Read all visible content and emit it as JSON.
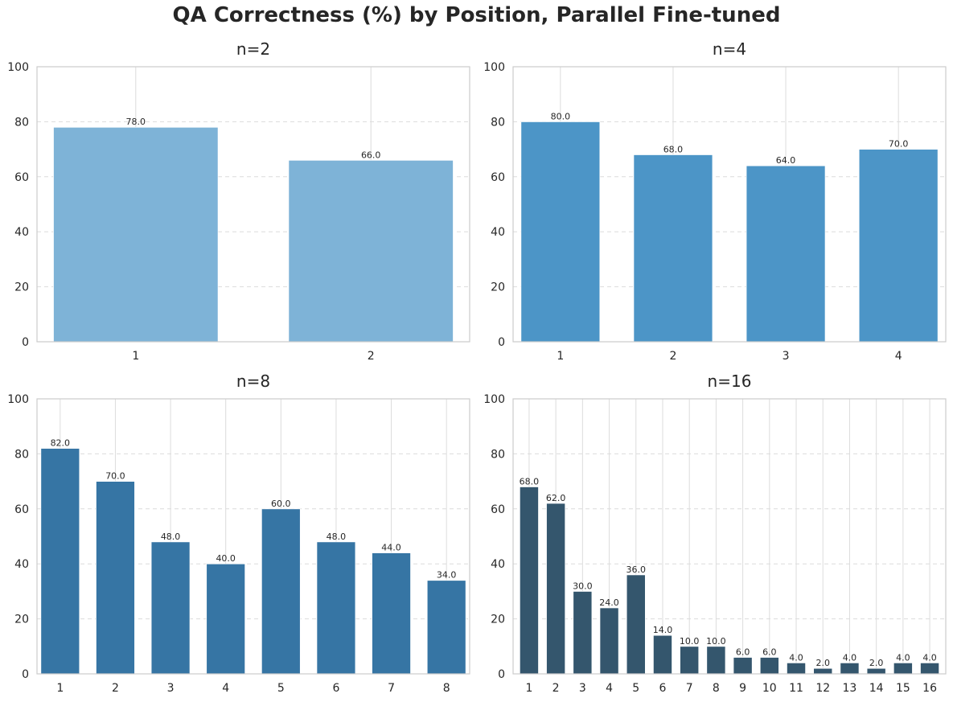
{
  "suptitle": "QA Correctness (%) by Position, Parallel Fine-tuned",
  "chart_data": [
    {
      "type": "bar",
      "title": "n=2",
      "categories": [
        "1",
        "2"
      ],
      "values": [
        78.0,
        66.0
      ],
      "ylim": [
        0,
        100
      ],
      "yticks": [
        0,
        20,
        40,
        60,
        80,
        100
      ],
      "color": "#7eb3d7",
      "grid": true
    },
    {
      "type": "bar",
      "title": "n=4",
      "categories": [
        "1",
        "2",
        "3",
        "4"
      ],
      "values": [
        80.0,
        68.0,
        64.0,
        70.0
      ],
      "ylim": [
        0,
        100
      ],
      "yticks": [
        0,
        20,
        40,
        60,
        80,
        100
      ],
      "color": "#4c95c7",
      "grid": true
    },
    {
      "type": "bar",
      "title": "n=8",
      "categories": [
        "1",
        "2",
        "3",
        "4",
        "5",
        "6",
        "7",
        "8"
      ],
      "values": [
        82.0,
        70.0,
        48.0,
        40.0,
        60.0,
        48.0,
        44.0,
        34.0
      ],
      "ylim": [
        0,
        100
      ],
      "yticks": [
        0,
        20,
        40,
        60,
        80,
        100
      ],
      "color": "#3675a4",
      "grid": true
    },
    {
      "type": "bar",
      "title": "n=16",
      "categories": [
        "1",
        "2",
        "3",
        "4",
        "5",
        "6",
        "7",
        "8",
        "9",
        "10",
        "11",
        "12",
        "13",
        "14",
        "15",
        "16"
      ],
      "values": [
        68.0,
        62.0,
        30.0,
        24.0,
        36.0,
        14.0,
        10.0,
        10.0,
        6.0,
        6.0,
        4.0,
        2.0,
        4.0,
        2.0,
        4.0,
        4.0
      ],
      "ylim": [
        0,
        100
      ],
      "yticks": [
        0,
        20,
        40,
        60,
        80,
        100
      ],
      "color": "#34566d",
      "grid": true
    }
  ]
}
